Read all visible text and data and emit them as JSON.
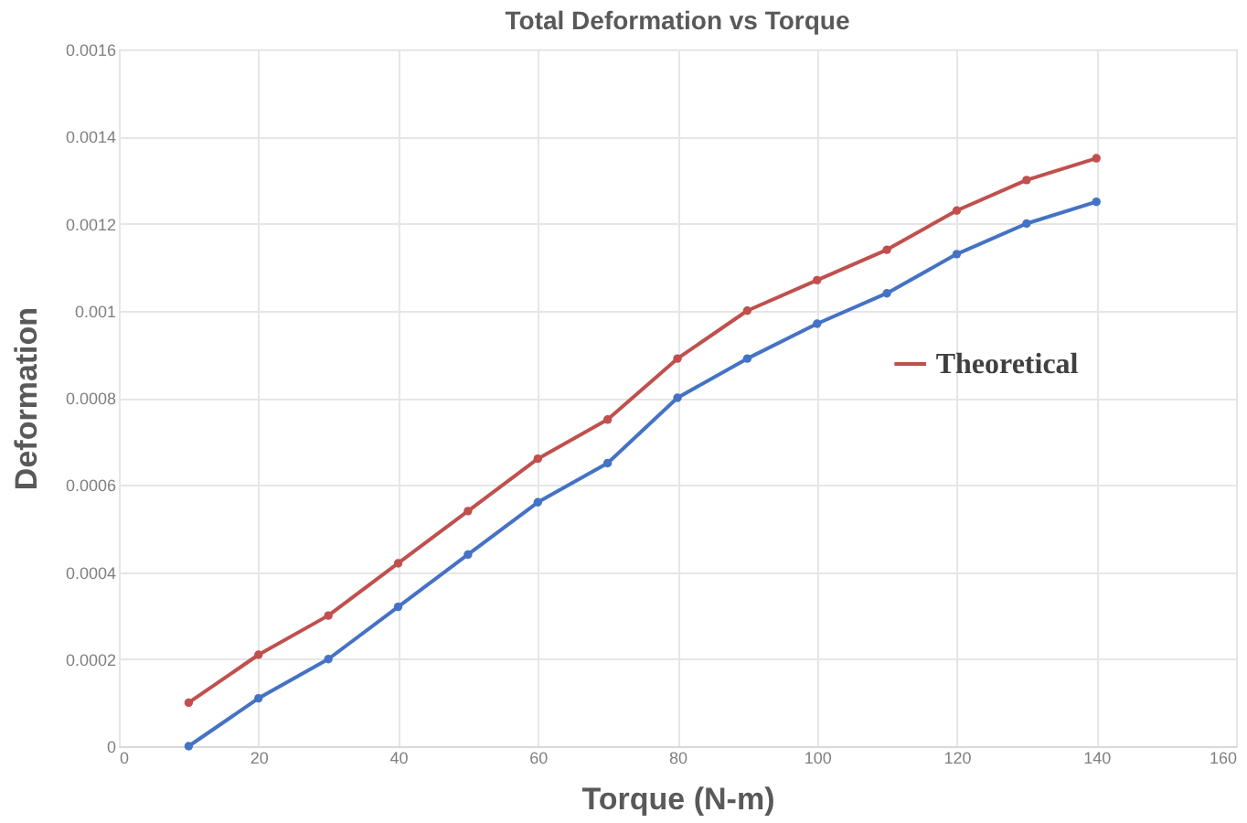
{
  "chart_data": {
    "type": "line",
    "title": "Total Deformation vs Torque",
    "xlabel": "Torque (N-m)",
    "ylabel": "Deformation",
    "x": [
      10,
      20,
      30,
      40,
      50,
      60,
      70,
      80,
      90,
      100,
      110,
      120,
      130,
      140
    ],
    "series": [
      {
        "color": "#4472c4",
        "values": [
          0,
          0.00011,
          0.0002,
          0.00032,
          0.00044,
          0.00056,
          0.00065,
          0.0008,
          0.00089,
          0.00097,
          0.00104,
          0.00113,
          0.0012,
          0.00125
        ]
      },
      {
        "name": "Theoretical",
        "color": "#c0504d",
        "values": [
          0.0001,
          0.00021,
          0.0003,
          0.00042,
          0.00054,
          0.00066,
          0.00075,
          0.00089,
          0.001,
          0.00107,
          0.00114,
          0.00123,
          0.0013,
          0.00135
        ]
      }
    ],
    "xlim": [
      0,
      160
    ],
    "xticks": [
      0,
      20,
      40,
      60,
      80,
      100,
      120,
      140,
      160
    ],
    "ylim": [
      0,
      0.0016
    ],
    "yticks": [
      0,
      0.0002,
      0.0004,
      0.0006,
      0.0008,
      0.001,
      0.0012,
      0.0014,
      0.0016
    ],
    "grid": true,
    "legend": "right",
    "marker": "circle",
    "line_style": "solid"
  }
}
